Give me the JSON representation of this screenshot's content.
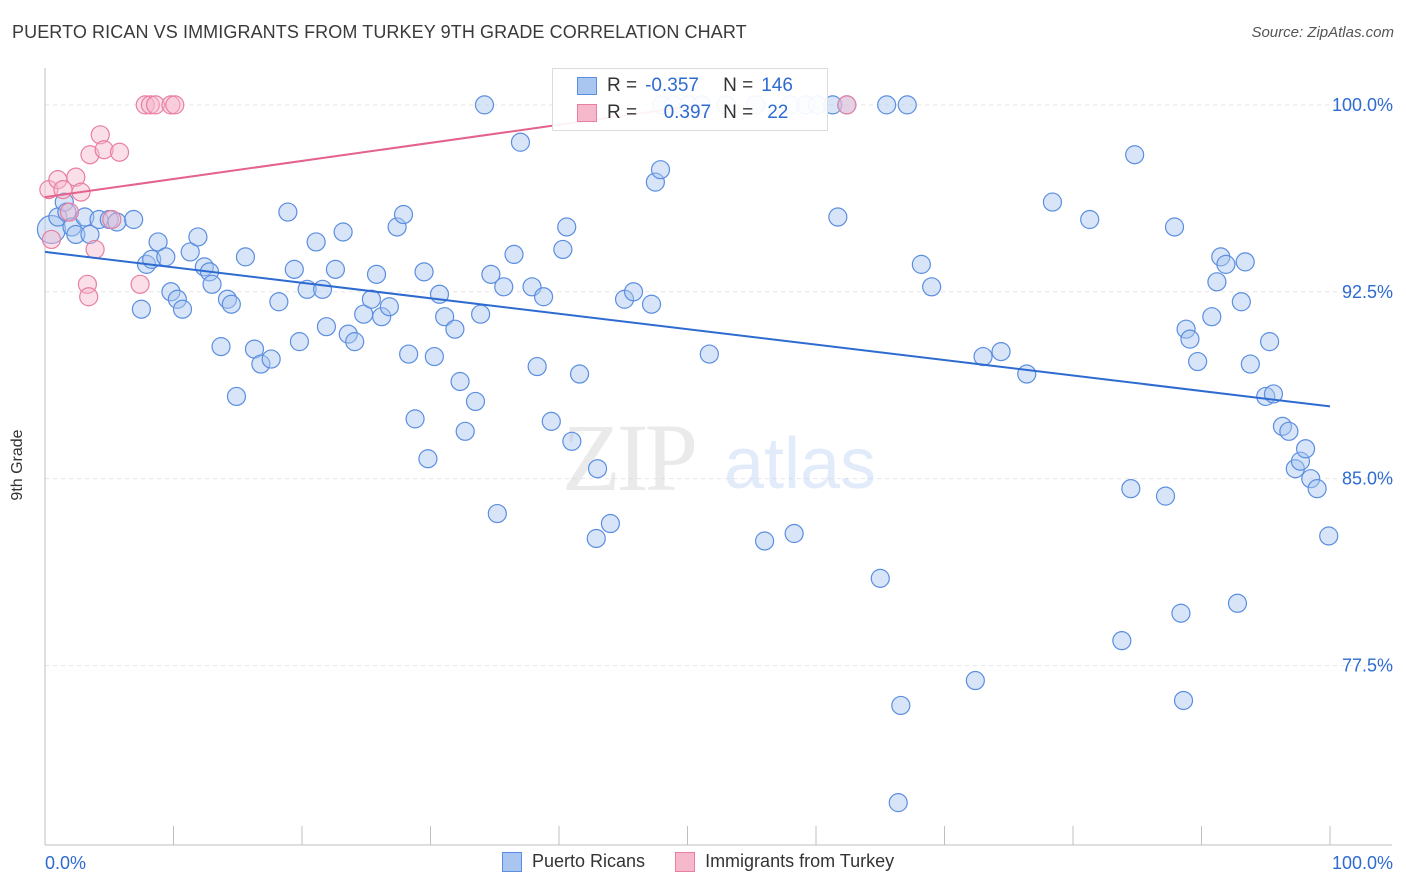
{
  "title": "PUERTO RICAN VS IMMIGRANTS FROM TURKEY 9TH GRADE CORRELATION CHART",
  "source": "Source: ZipAtlas.com",
  "watermark": {
    "zip": "ZIP",
    "atlas": "atlas"
  },
  "colors": {
    "blue": "#5b8ee0",
    "blue_fill": "#a9c6f0",
    "blue_line": "#2e6bd1",
    "pink": "#e87fa0",
    "pink_fill": "#f6b9cc",
    "pink_line": "#e4628b",
    "value_text": "#2e6bd1"
  },
  "legend": {
    "r_label": "R =",
    "n_label": "N =",
    "series1": {
      "r": "-0.357",
      "n": "146"
    },
    "series2": {
      "r": "0.397",
      "n": "22"
    }
  },
  "bottom_legend": [
    "Puerto Ricans",
    "Immigrants from Turkey"
  ],
  "chart_data": {
    "type": "scatter",
    "title": "PUERTO RICAN VS IMMIGRANTS FROM TURKEY 9TH GRADE CORRELATION CHART",
    "ylabel": "9th Grade",
    "xlabel": "",
    "x_ticks": [
      "0.0%",
      "100.0%"
    ],
    "y_ticks": [
      "77.5%",
      "85.0%",
      "92.5%",
      "100.0%"
    ],
    "xlim": [
      0,
      100
    ],
    "ylim": [
      70.3,
      101.4
    ],
    "grid": true,
    "series": [
      {
        "name": "Puerto Ricans",
        "trend": {
          "x": [
            0,
            100
          ],
          "y": [
            94.1,
            87.9
          ]
        },
        "points": [
          [
            0.5,
            95.0
          ],
          [
            1.0,
            95.5
          ],
          [
            1.5,
            96.1
          ],
          [
            1.7,
            95.7
          ],
          [
            2.1,
            95.1
          ],
          [
            2.4,
            94.8
          ],
          [
            3.1,
            95.5
          ],
          [
            3.5,
            94.8
          ],
          [
            4.2,
            95.4
          ],
          [
            5.0,
            95.4
          ],
          [
            5.6,
            95.3
          ],
          [
            6.9,
            95.4
          ],
          [
            7.5,
            91.8
          ],
          [
            7.9,
            93.6
          ],
          [
            8.3,
            93.8
          ],
          [
            8.8,
            94.5
          ],
          [
            9.4,
            93.9
          ],
          [
            9.8,
            92.5
          ],
          [
            10.3,
            92.2
          ],
          [
            10.7,
            91.8
          ],
          [
            11.3,
            94.1
          ],
          [
            11.9,
            94.7
          ],
          [
            12.4,
            93.5
          ],
          [
            12.8,
            93.3
          ],
          [
            13.0,
            92.8
          ],
          [
            13.7,
            90.3
          ],
          [
            14.2,
            92.2
          ],
          [
            14.5,
            92.0
          ],
          [
            14.9,
            88.3
          ],
          [
            15.6,
            93.9
          ],
          [
            16.3,
            90.2
          ],
          [
            16.8,
            89.6
          ],
          [
            17.6,
            89.8
          ],
          [
            18.2,
            92.1
          ],
          [
            18.9,
            95.7
          ],
          [
            19.4,
            93.4
          ],
          [
            19.8,
            90.5
          ],
          [
            20.4,
            92.6
          ],
          [
            21.1,
            94.5
          ],
          [
            21.6,
            92.6
          ],
          [
            21.9,
            91.1
          ],
          [
            22.6,
            93.4
          ],
          [
            23.2,
            94.9
          ],
          [
            23.6,
            90.8
          ],
          [
            24.1,
            90.5
          ],
          [
            24.8,
            91.6
          ],
          [
            25.4,
            92.2
          ],
          [
            25.8,
            93.2
          ],
          [
            26.2,
            91.5
          ],
          [
            26.8,
            91.9
          ],
          [
            27.4,
            95.1
          ],
          [
            27.9,
            95.6
          ],
          [
            28.3,
            90.0
          ],
          [
            28.8,
            87.4
          ],
          [
            29.5,
            93.3
          ],
          [
            29.8,
            85.8
          ],
          [
            30.3,
            89.9
          ],
          [
            30.7,
            92.4
          ],
          [
            31.1,
            91.5
          ],
          [
            31.9,
            91.0
          ],
          [
            32.3,
            88.9
          ],
          [
            32.7,
            86.9
          ],
          [
            33.5,
            88.1
          ],
          [
            33.9,
            91.6
          ],
          [
            34.2,
            100.0
          ],
          [
            34.7,
            93.2
          ],
          [
            35.2,
            83.6
          ],
          [
            35.7,
            92.7
          ],
          [
            36.5,
            94.0
          ],
          [
            37.0,
            98.5
          ],
          [
            37.9,
            92.7
          ],
          [
            38.3,
            89.5
          ],
          [
            38.8,
            92.3
          ],
          [
            39.4,
            87.3
          ],
          [
            40.3,
            94.2
          ],
          [
            40.6,
            95.1
          ],
          [
            41.0,
            86.5
          ],
          [
            41.6,
            89.2
          ],
          [
            43.0,
            85.4
          ],
          [
            42.9,
            82.6
          ],
          [
            44.0,
            83.2
          ],
          [
            45.1,
            92.2
          ],
          [
            45.8,
            92.5
          ],
          [
            47.2,
            92.0
          ],
          [
            47.5,
            96.9
          ],
          [
            47.9,
            97.4
          ],
          [
            48.0,
            100.0
          ],
          [
            48.9,
            100.0
          ],
          [
            50.1,
            100.0
          ],
          [
            51.1,
            100.0
          ],
          [
            51.7,
            90.0
          ],
          [
            53.0,
            100.0
          ],
          [
            55.3,
            100.0
          ],
          [
            56.0,
            82.5
          ],
          [
            58.0,
            100.0
          ],
          [
            58.3,
            82.8
          ],
          [
            59.2,
            100.0
          ],
          [
            60.1,
            100.0
          ],
          [
            61.3,
            100.0
          ],
          [
            62.4,
            100.0
          ],
          [
            61.7,
            95.5
          ],
          [
            65.0,
            81.0
          ],
          [
            65.5,
            100.0
          ],
          [
            67.1,
            100.0
          ],
          [
            66.4,
            72.0
          ],
          [
            66.6,
            75.9
          ],
          [
            68.2,
            93.6
          ],
          [
            69.0,
            92.7
          ],
          [
            72.4,
            76.9
          ],
          [
            73.0,
            89.9
          ],
          [
            74.4,
            90.1
          ],
          [
            76.4,
            89.2
          ],
          [
            78.4,
            96.1
          ],
          [
            81.3,
            95.4
          ],
          [
            83.8,
            78.5
          ],
          [
            84.5,
            84.6
          ],
          [
            84.8,
            98.0
          ],
          [
            87.2,
            84.3
          ],
          [
            87.9,
            95.1
          ],
          [
            88.4,
            79.6
          ],
          [
            88.6,
            76.1
          ],
          [
            88.8,
            91.0
          ],
          [
            89.1,
            90.6
          ],
          [
            89.7,
            89.7
          ],
          [
            90.8,
            91.5
          ],
          [
            91.2,
            92.9
          ],
          [
            91.5,
            93.9
          ],
          [
            91.9,
            93.6
          ],
          [
            92.8,
            80.0
          ],
          [
            93.1,
            92.1
          ],
          [
            93.4,
            93.7
          ],
          [
            93.8,
            89.6
          ],
          [
            95.0,
            88.3
          ],
          [
            95.3,
            90.5
          ],
          [
            95.6,
            88.4
          ],
          [
            96.3,
            87.1
          ],
          [
            96.8,
            86.9
          ],
          [
            97.3,
            85.4
          ],
          [
            97.7,
            85.7
          ],
          [
            98.1,
            86.2
          ],
          [
            98.5,
            85.0
          ],
          [
            99.0,
            84.6
          ],
          [
            99.9,
            82.7
          ]
        ]
      },
      {
        "name": "Immigrants from Turkey",
        "trend": {
          "x": [
            0,
            51
          ],
          "y": [
            96.3,
            100.0
          ]
        },
        "points": [
          [
            0.3,
            96.6
          ],
          [
            0.5,
            94.6
          ],
          [
            1.0,
            97.0
          ],
          [
            1.4,
            96.6
          ],
          [
            1.9,
            95.7
          ],
          [
            2.4,
            97.1
          ],
          [
            2.8,
            96.5
          ],
          [
            3.3,
            92.8
          ],
          [
            3.4,
            92.3
          ],
          [
            3.5,
            98.0
          ],
          [
            3.9,
            94.2
          ],
          [
            4.3,
            98.8
          ],
          [
            4.6,
            98.2
          ],
          [
            5.2,
            95.4
          ],
          [
            5.8,
            98.1
          ],
          [
            7.4,
            92.8
          ],
          [
            7.8,
            100.0
          ],
          [
            8.2,
            100.0
          ],
          [
            8.6,
            100.0
          ],
          [
            9.8,
            100.0
          ],
          [
            10.1,
            100.0
          ],
          [
            62.4,
            100.0
          ]
        ]
      }
    ]
  }
}
